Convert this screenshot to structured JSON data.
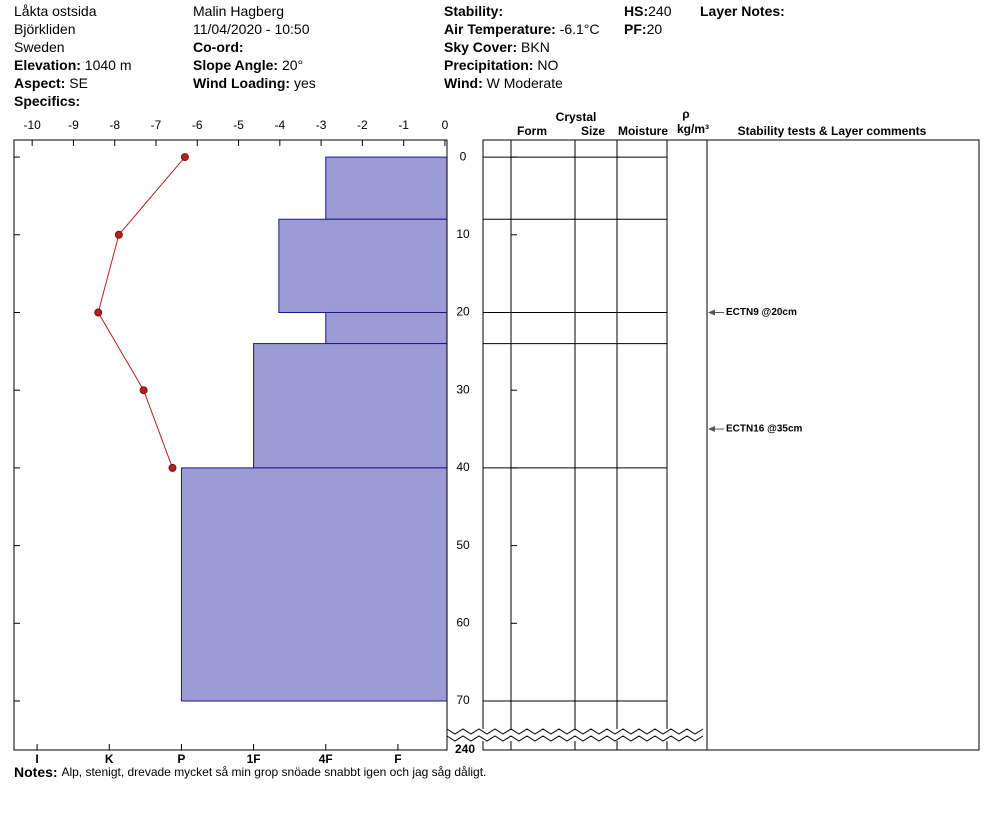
{
  "header": {
    "columns": [
      [
        {
          "text": "Låkta ostsida"
        },
        {
          "text": "Björkliden"
        },
        {
          "text": "Sweden"
        },
        {
          "label": "Elevation:",
          "value": "1040 m"
        },
        {
          "label": "Aspect:",
          "value": "SE"
        },
        {
          "label": "Specifics:"
        }
      ],
      [
        {
          "text": "Malin Hagberg"
        },
        {
          "text": "11/04/2020 - 10:50"
        },
        {
          "label": "Co-ord:"
        },
        {
          "label": "Slope Angle:",
          "value": "20°"
        },
        {
          "label": "Wind Loading:",
          "value": "yes"
        }
      ],
      [
        {
          "label": "Stability:"
        },
        {
          "label": "Air Temperature:",
          "value": "-6.1°C"
        },
        {
          "label": "Sky Cover:",
          "value": "BKN"
        },
        {
          "label": "Precipitation:",
          "value": "NO"
        },
        {
          "label": "Wind:",
          "value": "W Moderate"
        }
      ],
      [
        {
          "label": "HS:",
          "value": "240"
        },
        {
          "label": "PF:",
          "value": "20"
        }
      ],
      [
        {
          "label": "Layer Notes:"
        }
      ]
    ]
  },
  "chart_data": {
    "type": "snow-profile",
    "temperature": {
      "depths": [
        0,
        10,
        20,
        30,
        40
      ],
      "values": [
        -6.3,
        -7.9,
        -8.4,
        -7.3,
        -6.6
      ],
      "color": "#b22222"
    },
    "xlim": [
      -10.44,
      0.05
    ],
    "xticks": [
      -10,
      -9,
      -8,
      -7,
      -6,
      -5,
      -4,
      -3,
      -2,
      -1,
      0
    ],
    "layers": {
      "tops": [
        0,
        8,
        20,
        24,
        40
      ],
      "bottoms": [
        8,
        20,
        24,
        40,
        70
      ],
      "hardness": [
        2,
        2.65,
        2,
        3,
        4
      ],
      "color": "#9b9bd6"
    },
    "hardness_lim": [
      0.32,
      6.32
    ],
    "hardness_ticks": [
      {
        "value": 6,
        "label": "I"
      },
      {
        "value": 5,
        "label": "K"
      },
      {
        "value": 4,
        "label": "P"
      },
      {
        "value": 3,
        "label": "1F"
      },
      {
        "value": 2,
        "label": "4F"
      },
      {
        "value": 1,
        "label": "F"
      }
    ],
    "ylim": [
      -2.2,
      70
    ],
    "yticks": [
      0,
      10,
      20,
      30,
      40,
      50,
      60,
      70
    ],
    "axis_break": 240,
    "table_headers": {
      "crystal": "Crystal",
      "form": "Form",
      "size": "Size",
      "moisture": "Moisture",
      "rho": "ρ",
      "density_unit": "kg/m³",
      "comments": "Stability tests & Layer comments"
    },
    "tests": {
      "depths": [
        20,
        35
      ],
      "labels": [
        "ECTN9 @20cm",
        "ECTN16 @35cm"
      ]
    }
  },
  "notes": {
    "label": "Notes:",
    "text": "Alp, stenigt, drevade mycket så min grop snöade snabbt igen och jag såg dåligt."
  }
}
